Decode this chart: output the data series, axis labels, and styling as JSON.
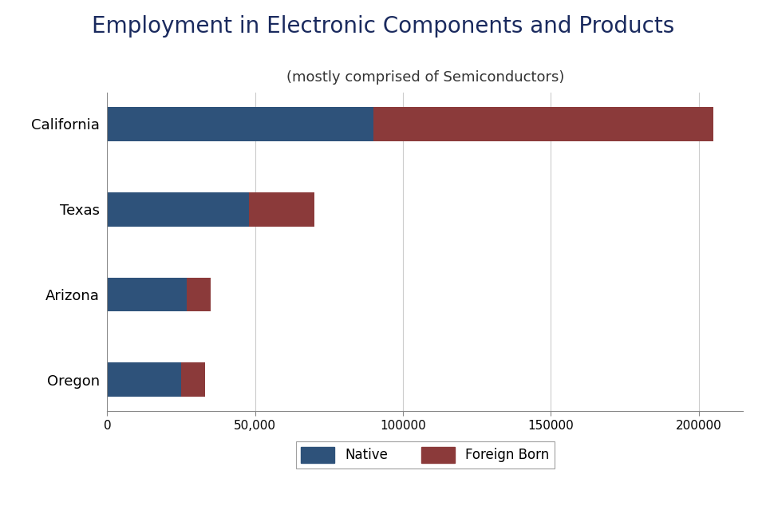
{
  "title": "Employment in Electronic Components and Products",
  "subtitle": "(mostly comprised of Semiconductors)",
  "categories": [
    "Oregon",
    "Arizona",
    "Texas",
    "California"
  ],
  "native": [
    25000,
    27000,
    48000,
    90000
  ],
  "foreign_born": [
    8000,
    8000,
    22000,
    115000
  ],
  "native_color": "#2e527a",
  "foreign_born_color": "#8b3a3a",
  "title_color": "#1a2a5e",
  "subtitle_color": "#333333",
  "background_color": "#ffffff",
  "xlim": [
    0,
    215000
  ],
  "xticks": [
    0,
    50000,
    100000,
    150000,
    200000
  ],
  "xticklabels": [
    "0",
    "50,000",
    "100000",
    "150000",
    "200000"
  ],
  "title_fontsize": 20,
  "subtitle_fontsize": 13,
  "label_fontsize": 13,
  "tick_fontsize": 11,
  "legend_fontsize": 12,
  "bar_height": 0.4
}
